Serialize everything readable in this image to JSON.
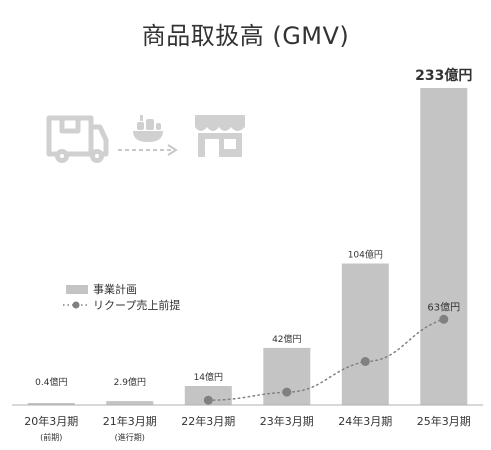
{
  "chart_data": {
    "type": "bar",
    "title": "商品取扱高 (GMV)",
    "categories": [
      "20年3月期",
      "21年3月期",
      "22年3月期",
      "23年3月期",
      "24年3月期",
      "25年3月期"
    ],
    "category_notes": [
      "(前期)",
      "(進行期)",
      "",
      "",
      "",
      ""
    ],
    "series": [
      {
        "name": "事業計画",
        "kind": "bar",
        "values": [
          0.4,
          2.9,
          14,
          42,
          104,
          233
        ],
        "labels": [
          "0.4億円",
          "2.9億円",
          "14億円",
          "42億円",
          "104億円",
          "233億円"
        ],
        "emphasized_label_index": 5
      },
      {
        "name": "リクープ売上前提",
        "kind": "line",
        "style": "dotted",
        "values": [
          null,
          null,
          3.5,
          9.5,
          32,
          63
        ],
        "labels": [
          null,
          null,
          null,
          null,
          null,
          "63億円"
        ]
      }
    ],
    "ylim": [
      0,
      233
    ],
    "grid": false,
    "legend": "left-middle",
    "colors": {
      "bar": "#c4c4c4",
      "line": "#808080",
      "axis": "#b0b0b0",
      "text": "#333333",
      "icon": "#d0d0d0"
    }
  },
  "illustration": {
    "icons": [
      "delivery-truck-icon",
      "dishes-icon",
      "dotted-arrow-icon",
      "storefront-icon"
    ]
  }
}
